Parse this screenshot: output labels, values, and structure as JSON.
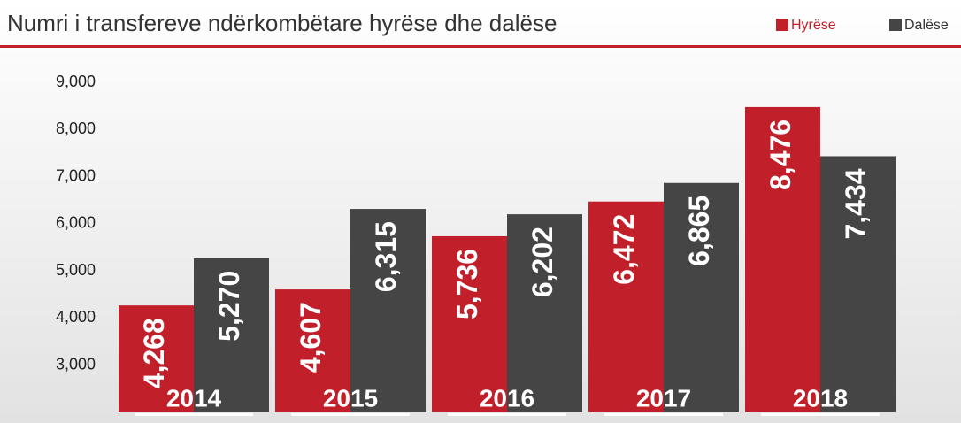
{
  "chart_data": {
    "type": "bar",
    "title": "Numri i transfereve ndërkombëtare hyrëse dhe dalëse",
    "categories": [
      "2014",
      "2015",
      "2016",
      "2017",
      "2018"
    ],
    "series": [
      {
        "name": "Hyrëse",
        "color": "#c1202b",
        "values": [
          4268,
          4607,
          5736,
          6472,
          8476
        ],
        "value_labels": [
          "4,268",
          "4,607",
          "5,736",
          "6,472",
          "8,476"
        ]
      },
      {
        "name": "Dalëse",
        "color": "#454545",
        "values": [
          5270,
          6315,
          6202,
          6865,
          7434
        ],
        "value_labels": [
          "5,270",
          "6,315",
          "6,202",
          "6,865",
          "7,434"
        ]
      }
    ],
    "ylim": [
      2000,
      9000
    ],
    "yticks": [
      {
        "value": 3000,
        "label": "3,000"
      },
      {
        "value": 4000,
        "label": "4,000"
      },
      {
        "value": 5000,
        "label": "5,000"
      },
      {
        "value": 6000,
        "label": "6,000"
      },
      {
        "value": 7000,
        "label": "7,000"
      },
      {
        "value": 8000,
        "label": "8,000"
      },
      {
        "value": 9000,
        "label": "9,000"
      }
    ],
    "legend": "top-right"
  }
}
